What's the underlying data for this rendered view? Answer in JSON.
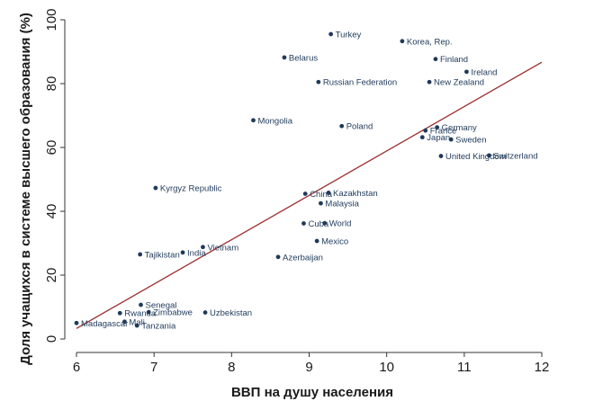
{
  "chart_data": {
    "type": "scatter",
    "title": "",
    "xlabel": "ВВП на душу населения",
    "ylabel": "Доля учащихся в системе высшего образования (%)",
    "xlim": [
      6,
      12
    ],
    "ylim": [
      0,
      100
    ],
    "x_ticks": [
      "6",
      "7",
      "8",
      "9",
      "10",
      "11",
      "12"
    ],
    "y_ticks": [
      "0",
      "20",
      "40",
      "60",
      "80",
      "100"
    ],
    "grid": false,
    "marker_color": "#1f3a5a",
    "line_color": "#9b2d2d",
    "points": [
      {
        "label": "Turkey",
        "x": 9.28,
        "y": 95.5
      },
      {
        "label": "Korea, Rep.",
        "x": 10.2,
        "y": 93.3
      },
      {
        "label": "Belarus",
        "x": 8.68,
        "y": 88.2
      },
      {
        "label": "Finland",
        "x": 10.63,
        "y": 87.7
      },
      {
        "label": "Ireland",
        "x": 11.03,
        "y": 83.7
      },
      {
        "label": "Russian Federation",
        "x": 9.12,
        "y": 80.5
      },
      {
        "label": "New Zealand",
        "x": 10.55,
        "y": 80.5
      },
      {
        "label": "Mongolia",
        "x": 8.28,
        "y": 68.5
      },
      {
        "label": "Poland",
        "x": 9.42,
        "y": 66.7
      },
      {
        "label": "Germany",
        "x": 10.65,
        "y": 66.3
      },
      {
        "label": "France",
        "x": 10.5,
        "y": 65.3
      },
      {
        "label": "Japan",
        "x": 10.46,
        "y": 63.2
      },
      {
        "label": "Sweden",
        "x": 10.83,
        "y": 62.5
      },
      {
        "label": "United Kingdom",
        "x": 10.7,
        "y": 57.3
      },
      {
        "label": "Switzerland",
        "x": 11.32,
        "y": 57.5
      },
      {
        "label": "Kyrgyz Republic",
        "x": 7.02,
        "y": 47.3
      },
      {
        "label": "China",
        "x": 8.95,
        "y": 45.5
      },
      {
        "label": "Kazakhstan",
        "x": 9.25,
        "y": 45.8
      },
      {
        "label": "Malaysia",
        "x": 9.15,
        "y": 42.5
      },
      {
        "label": "Cuba",
        "x": 8.93,
        "y": 36.2
      },
      {
        "label": "World",
        "x": 9.2,
        "y": 36.3
      },
      {
        "label": "Mexico",
        "x": 9.1,
        "y": 30.7
      },
      {
        "label": "Vietnam",
        "x": 7.63,
        "y": 28.8
      },
      {
        "label": "India",
        "x": 7.37,
        "y": 27.1
      },
      {
        "label": "Tajikistan",
        "x": 6.82,
        "y": 26.5
      },
      {
        "label": "Azerbaijan",
        "x": 8.6,
        "y": 25.7
      },
      {
        "label": "Senegal",
        "x": 6.83,
        "y": 10.7
      },
      {
        "label": "Rwanda",
        "x": 6.56,
        "y": 8.1
      },
      {
        "label": "Zimbabwe",
        "x": 6.93,
        "y": 8.4
      },
      {
        "label": "Uzbekistan",
        "x": 7.66,
        "y": 8.3
      },
      {
        "label": "Madagascar",
        "x": 6.0,
        "y": 5.0
      },
      {
        "label": "Mali",
        "x": 6.62,
        "y": 5.4
      },
      {
        "label": "Tanzania",
        "x": 6.78,
        "y": 4.2
      }
    ],
    "fit_line": {
      "x": [
        6,
        12
      ],
      "y": [
        3.3,
        86.7
      ]
    }
  }
}
